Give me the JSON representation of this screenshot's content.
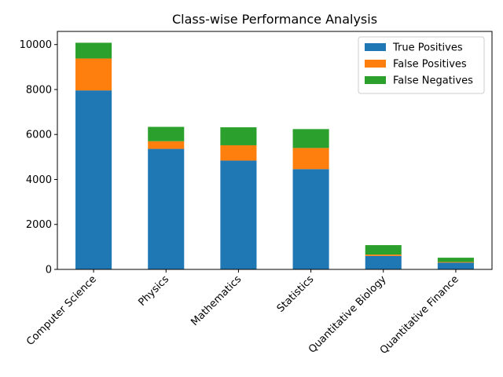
{
  "chart_data": {
    "type": "bar",
    "stacked": true,
    "title": "Class-wise Performance Analysis",
    "xlabel": "",
    "ylabel": "",
    "categories": [
      "Computer Science",
      "Physics",
      "Mathematics",
      "Statistics",
      "Quantitative Biology",
      "Quantitative Finance"
    ],
    "series": [
      {
        "name": "True Positives",
        "color": "#1f77b4",
        "values": [
          7960,
          5360,
          4840,
          4460,
          600,
          300
        ]
      },
      {
        "name": "False Positives",
        "color": "#ff7f0e",
        "values": [
          1420,
          340,
          680,
          940,
          60,
          30
        ]
      },
      {
        "name": "False Negatives",
        "color": "#2ca02c",
        "values": [
          700,
          640,
          800,
          840,
          420,
          190
        ]
      }
    ],
    "ylim": [
      0,
      10584
    ],
    "yticks": [
      0,
      2000,
      4000,
      6000,
      8000,
      10000
    ],
    "grid": false,
    "legend": "top-right"
  }
}
